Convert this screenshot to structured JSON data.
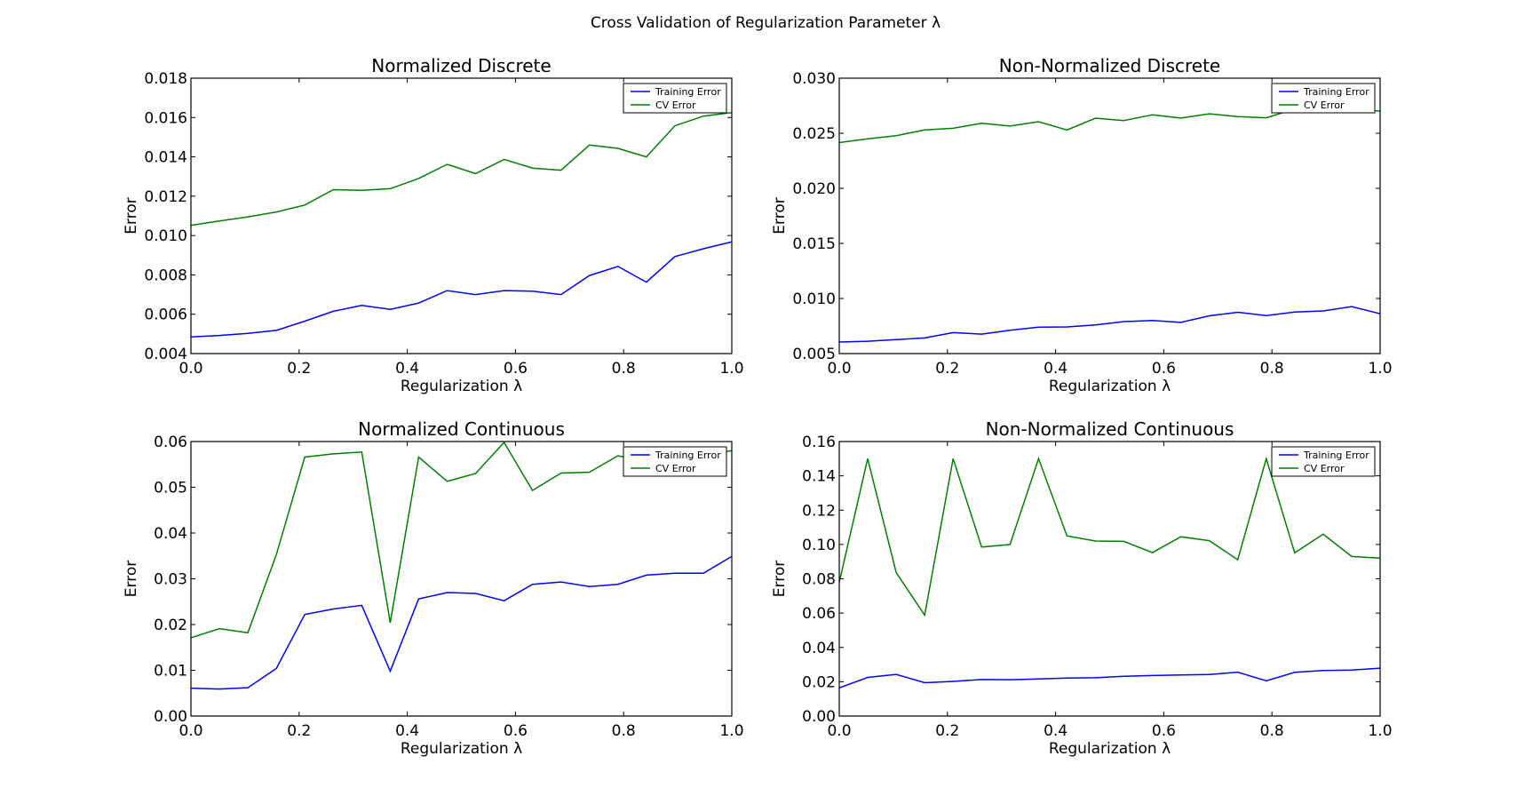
{
  "figure": {
    "title": "Cross Validation of Regularization Parameter λ"
  },
  "colors": {
    "training": "#0000ff",
    "cv": "#008000",
    "axes": "#000000",
    "background": "#ffffff"
  },
  "chart_data": [
    {
      "type": "line",
      "title": "Normalized Discrete",
      "xlabel": "Regularization λ",
      "ylabel": "Error",
      "xlim": [
        0,
        1
      ],
      "ylim": [
        0.004,
        0.018
      ],
      "xticks": [
        "0.0",
        "0.2",
        "0.4",
        "0.6",
        "0.8",
        "1.0"
      ],
      "yticks": [
        "0.004",
        "0.006",
        "0.008",
        "0.010",
        "0.012",
        "0.014",
        "0.016",
        "0.018"
      ],
      "legend": "top-right",
      "grid": false,
      "x": [
        0,
        0.0526,
        0.1053,
        0.1579,
        0.2105,
        0.2632,
        0.3158,
        0.3684,
        0.4211,
        0.4737,
        0.5263,
        0.5789,
        0.6316,
        0.6842,
        0.7368,
        0.7895,
        0.8421,
        0.8947,
        0.9474,
        1.0
      ],
      "series": [
        {
          "name": "Training Error",
          "color": "#0000ff",
          "values": [
            0.00485,
            0.00492,
            0.00503,
            0.00518,
            0.00565,
            0.00615,
            0.00645,
            0.00625,
            0.00657,
            0.0072,
            0.007,
            0.0072,
            0.00717,
            0.007,
            0.00797,
            0.00843,
            0.00763,
            0.00893,
            0.00933,
            0.00968
          ]
        },
        {
          "name": "CV Error",
          "color": "#008000",
          "values": [
            0.01052,
            0.01074,
            0.01095,
            0.0112,
            0.01155,
            0.01233,
            0.0123,
            0.01238,
            0.0129,
            0.01362,
            0.01315,
            0.01387,
            0.01343,
            0.01332,
            0.0146,
            0.01443,
            0.014,
            0.01558,
            0.01607,
            0.01625
          ]
        }
      ]
    },
    {
      "type": "line",
      "title": "Non-Normalized Discrete",
      "xlabel": "Regularization λ",
      "ylabel": "Error",
      "xlim": [
        0,
        1
      ],
      "ylim": [
        0.005,
        0.03
      ],
      "xticks": [
        "0.0",
        "0.2",
        "0.4",
        "0.6",
        "0.8",
        "1.0"
      ],
      "yticks": [
        "0.005",
        "0.010",
        "0.015",
        "0.020",
        "0.025",
        "0.030"
      ],
      "legend": "top-right",
      "grid": false,
      "x": [
        0,
        0.0526,
        0.1053,
        0.1579,
        0.2105,
        0.2632,
        0.3158,
        0.3684,
        0.4211,
        0.4737,
        0.5263,
        0.5789,
        0.6316,
        0.6842,
        0.7368,
        0.7895,
        0.8421,
        0.8947,
        0.9474,
        1.0
      ],
      "series": [
        {
          "name": "Training Error",
          "color": "#0000ff",
          "values": [
            0.00605,
            0.00612,
            0.00627,
            0.00642,
            0.0069,
            0.00677,
            0.00712,
            0.0074,
            0.00742,
            0.0076,
            0.0079,
            0.008,
            0.00783,
            0.00843,
            0.00875,
            0.00845,
            0.00877,
            0.00887,
            0.00927,
            0.00862
          ]
        },
        {
          "name": "CV Error",
          "color": "#008000",
          "values": [
            0.02415,
            0.0245,
            0.02478,
            0.0253,
            0.02545,
            0.0259,
            0.02565,
            0.02605,
            0.0253,
            0.02637,
            0.02615,
            0.02668,
            0.02638,
            0.02677,
            0.02652,
            0.0264,
            0.0272,
            0.02735,
            0.0273,
            0.027
          ]
        }
      ]
    },
    {
      "type": "line",
      "title": "Normalized Continuous",
      "xlabel": "Regularization λ",
      "ylabel": "Error",
      "xlim": [
        0,
        1
      ],
      "ylim": [
        0.0,
        0.06
      ],
      "xticks": [
        "0.0",
        "0.2",
        "0.4",
        "0.6",
        "0.8",
        "1.0"
      ],
      "yticks": [
        "0.00",
        "0.01",
        "0.02",
        "0.03",
        "0.04",
        "0.05",
        "0.06"
      ],
      "legend": "top-right",
      "grid": false,
      "x": [
        0,
        0.0526,
        0.1053,
        0.1579,
        0.2105,
        0.2632,
        0.3158,
        0.3684,
        0.4211,
        0.4737,
        0.5263,
        0.5789,
        0.6316,
        0.6842,
        0.7368,
        0.7895,
        0.8421,
        0.8947,
        0.9474,
        1.0
      ],
      "series": [
        {
          "name": "Training Error",
          "color": "#0000ff",
          "values": [
            0.0061,
            0.0059,
            0.0062,
            0.0104,
            0.0222,
            0.0234,
            0.0242,
            0.0098,
            0.0256,
            0.027,
            0.0268,
            0.0252,
            0.0288,
            0.0293,
            0.0283,
            0.0288,
            0.0308,
            0.0312,
            0.0312,
            0.0349
          ]
        },
        {
          "name": "CV Error",
          "color": "#008000",
          "values": [
            0.0171,
            0.0191,
            0.0182,
            0.0353,
            0.0566,
            0.0573,
            0.0577,
            0.0204,
            0.0566,
            0.0513,
            0.053,
            0.0598,
            0.0493,
            0.0531,
            0.0533,
            0.0569,
            0.0556,
            0.0573,
            0.057,
            0.058
          ]
        }
      ]
    },
    {
      "type": "line",
      "title": "Non-Normalized Continuous",
      "xlabel": "Regularization λ",
      "ylabel": "Error",
      "xlim": [
        0,
        1
      ],
      "ylim": [
        0.0,
        0.16
      ],
      "xticks": [
        "0.0",
        "0.2",
        "0.4",
        "0.6",
        "0.8",
        "1.0"
      ],
      "yticks": [
        "0.00",
        "0.02",
        "0.04",
        "0.06",
        "0.08",
        "0.10",
        "0.12",
        "0.14",
        "0.16"
      ],
      "legend": "top-right",
      "grid": false,
      "x": [
        0,
        0.0526,
        0.1053,
        0.1579,
        0.2105,
        0.2632,
        0.3158,
        0.3684,
        0.4211,
        0.4737,
        0.5263,
        0.5789,
        0.6316,
        0.6842,
        0.7368,
        0.7895,
        0.8421,
        0.8947,
        0.9474,
        1.0
      ],
      "series": [
        {
          "name": "Training Error",
          "color": "#0000ff",
          "values": [
            0.0164,
            0.0225,
            0.0243,
            0.0194,
            0.0202,
            0.0213,
            0.0212,
            0.0216,
            0.0221,
            0.0223,
            0.0232,
            0.0236,
            0.0239,
            0.0242,
            0.0256,
            0.0205,
            0.0255,
            0.0265,
            0.0268,
            0.0279
          ]
        },
        {
          "name": "CV Error",
          "color": "#008000",
          "values": [
            0.078,
            0.15,
            0.0836,
            0.0588,
            0.15,
            0.0985,
            0.1,
            0.15,
            0.105,
            0.102,
            0.1018,
            0.0953,
            0.1045,
            0.1022,
            0.0911,
            0.15,
            0.0951,
            0.106,
            0.093,
            0.092
          ]
        }
      ]
    }
  ]
}
